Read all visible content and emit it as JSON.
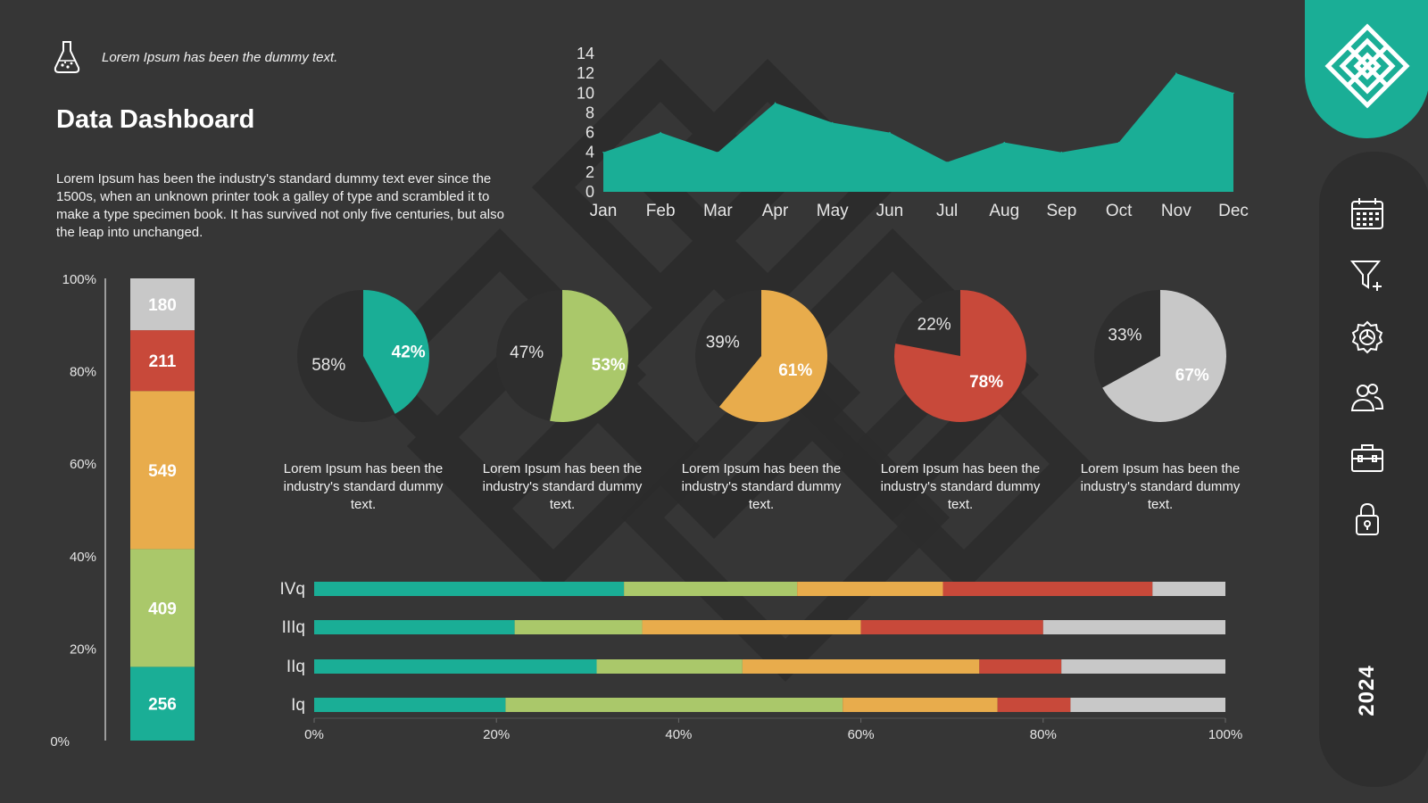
{
  "tagline": "Lorem Ipsum has been the dummy text.",
  "title": "Data Dashboard",
  "intro": "Lorem Ipsum has been the industry's standard dummy text ever since the 1500s, when an unknown printer took a galley of type and scrambled it to make a type specimen book. It has survived not only five centuries, but also the leap into unchanged.",
  "year": "2024",
  "sidebar": {
    "icons": [
      "calendar-icon",
      "filter-add-icon",
      "settings-gear-icon",
      "users-icon",
      "briefcase-icon",
      "lock-icon"
    ]
  },
  "colors": {
    "background": "#363636",
    "teal": "#1aae96",
    "green": "#aac86a",
    "orange": "#e8ac4c",
    "red": "#c8493a",
    "gray": "#c8c8c8"
  },
  "pie_caption": "Lorem Ipsum has been the industry's standard dummy text.",
  "chart_data": [
    {
      "type": "area",
      "categories": [
        "Jan",
        "Feb",
        "Mar",
        "Apr",
        "May",
        "Jun",
        "Jul",
        "Aug",
        "Sep",
        "Oct",
        "Nov",
        "Dec"
      ],
      "values": [
        4,
        6,
        4,
        9,
        7,
        6,
        3,
        5,
        4,
        5,
        12,
        10
      ],
      "ylim": [
        0,
        14
      ],
      "yticks": [
        0,
        2,
        4,
        6,
        8,
        10,
        12,
        14
      ],
      "grid": false
    },
    {
      "type": "bar",
      "stacked": true,
      "normalized": true,
      "values": [
        256,
        409,
        549,
        211,
        180
      ],
      "colors": [
        "#1aae96",
        "#aac86a",
        "#e8ac4c",
        "#c8493a",
        "#c8c8c8"
      ],
      "yticks": [
        "0%",
        "20%",
        "40%",
        "60%",
        "80%",
        "100%"
      ]
    },
    {
      "type": "pie",
      "pies": [
        {
          "label": "42%",
          "rest_label": "58%",
          "value": 42,
          "color": "#1aae96"
        },
        {
          "label": "53%",
          "rest_label": "47%",
          "value": 53,
          "color": "#aac86a"
        },
        {
          "label": "61%",
          "rest_label": "39%",
          "value": 61,
          "color": "#e8ac4c"
        },
        {
          "label": "78%",
          "rest_label": "22%",
          "value": 78,
          "color": "#c8493a"
        },
        {
          "label": "67%",
          "rest_label": "33%",
          "value": 67,
          "color": "#c8c8c8"
        }
      ]
    },
    {
      "type": "bar",
      "orientation": "horizontal",
      "stacked": true,
      "categories": [
        "IVq",
        "IIIq",
        "IIq",
        "Iq"
      ],
      "series": [
        {
          "color": "#1aae96",
          "values": [
            34,
            22,
            31,
            21
          ]
        },
        {
          "color": "#aac86a",
          "values": [
            19,
            14,
            16,
            37
          ]
        },
        {
          "color": "#e8ac4c",
          "values": [
            16,
            24,
            26,
            17
          ]
        },
        {
          "color": "#c8493a",
          "values": [
            23,
            20,
            9,
            8
          ]
        },
        {
          "color": "#c8c8c8",
          "values": [
            8,
            20,
            18,
            17
          ]
        }
      ],
      "xticks": [
        "0%",
        "20%",
        "40%",
        "60%",
        "80%",
        "100%"
      ],
      "xlim": [
        0,
        100
      ]
    }
  ]
}
